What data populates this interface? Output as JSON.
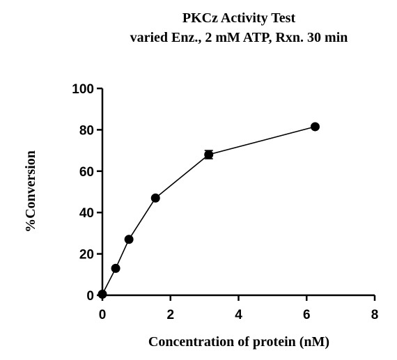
{
  "chart_data": {
    "type": "scatter",
    "title": "PKCz Activity Test",
    "subtitle": "varied Enz., 2 mM ATP, Rxn. 30 min",
    "xlabel": "Concentration of protein (nM)",
    "ylabel": "%Conversion",
    "xlim": [
      0,
      8
    ],
    "ylim": [
      0,
      100
    ],
    "xticks": [
      "0",
      "2",
      "4",
      "6",
      "8"
    ],
    "yticks": [
      "0",
      "20",
      "40",
      "60",
      "80",
      "100"
    ],
    "grid": false,
    "legend": "none",
    "series": [
      {
        "color": "#000000",
        "connected": true,
        "points": [
          {
            "x": 0,
            "y": 0.5,
            "err": 0
          },
          {
            "x": 0.39,
            "y": 13,
            "err": 0
          },
          {
            "x": 0.78,
            "y": 27,
            "err": 0
          },
          {
            "x": 1.56,
            "y": 47,
            "err": 0
          },
          {
            "x": 3.125,
            "y": 68,
            "err": 2
          },
          {
            "x": 6.25,
            "y": 81.5,
            "err": 0
          }
        ]
      }
    ]
  }
}
